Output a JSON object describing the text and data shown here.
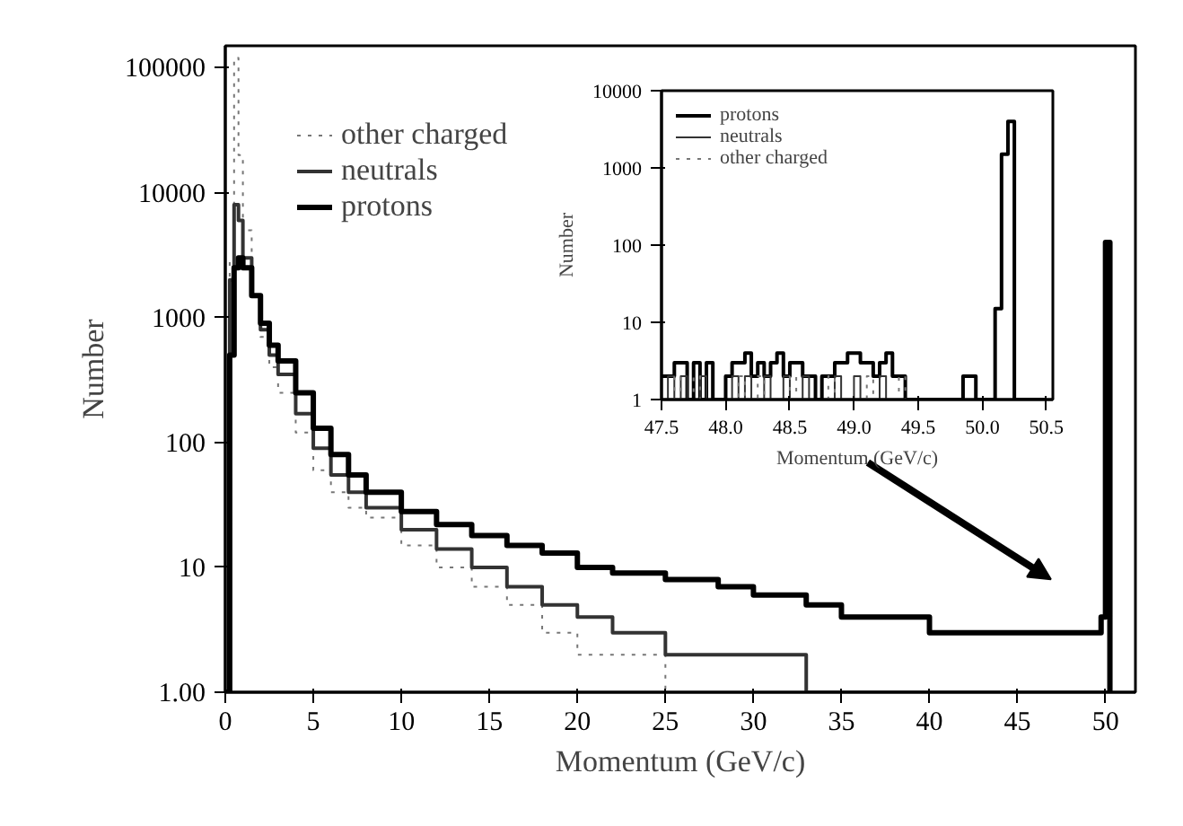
{
  "chart_data": [
    {
      "type": "step",
      "xlabel": "Momentum (GeV/c)",
      "ylabel": "Number",
      "log": "y",
      "legend": "top left",
      "x": [
        0,
        0.25,
        0.5,
        0.75,
        1,
        1.5,
        2,
        2.5,
        3,
        4,
        5,
        6,
        7,
        8,
        10,
        12,
        14,
        16,
        18,
        20,
        22,
        25,
        28,
        30,
        33,
        35,
        38,
        40,
        43,
        45,
        48,
        49.75,
        50,
        50.25
      ],
      "series": [
        {
          "name": "other charged",
          "color": "#777777",
          "line_style": "dotted",
          "values": [
            1,
            3000,
            120000,
            20000,
            5000,
            1500,
            700,
            400,
            250,
            120,
            60,
            40,
            30,
            25,
            15,
            10,
            7,
            5,
            3,
            2,
            2,
            1,
            1,
            1,
            1,
            1,
            1,
            1,
            1,
            1,
            1,
            1,
            1,
            1
          ]
        },
        {
          "name": "neutrals",
          "color": "#333333",
          "line_style": "solid",
          "values": [
            1,
            2000,
            8000,
            6000,
            3000,
            1500,
            800,
            500,
            350,
            170,
            90,
            55,
            40,
            30,
            20,
            14,
            10,
            7,
            5,
            4,
            3,
            2,
            2,
            2,
            1,
            1,
            1,
            1,
            1,
            1,
            1,
            1,
            1,
            1
          ]
        },
        {
          "name": "protons",
          "color": "#000000",
          "line_style": "solid",
          "values": [
            1,
            500,
            2500,
            3000,
            2500,
            1500,
            900,
            600,
            450,
            250,
            130,
            80,
            55,
            40,
            28,
            22,
            18,
            15,
            13,
            10,
            9,
            8,
            7,
            6,
            5,
            4,
            4,
            3,
            3,
            3,
            3,
            4,
            4000,
            1
          ]
        }
      ],
      "xlim": [
        0,
        51.7
      ],
      "ylim": [
        1,
        150000
      ],
      "xticks": [
        0,
        5,
        10,
        15,
        20,
        25,
        30,
        35,
        40,
        45,
        50
      ],
      "yticks": [
        {
          "value": 1,
          "label": "1.00"
        },
        10,
        100,
        1000,
        10000,
        100000
      ]
    },
    {
      "type": "step",
      "xlabel": "Momentum (GeV/c)",
      "ylabel": "Number",
      "log": "y",
      "legend": "top left",
      "x": [
        47.5,
        47.55,
        47.6,
        47.65,
        47.7,
        47.75,
        47.8,
        47.85,
        47.9,
        47.95,
        48.0,
        48.05,
        48.1,
        48.15,
        48.2,
        48.25,
        48.3,
        48.35,
        48.4,
        48.45,
        48.5,
        48.55,
        48.6,
        48.65,
        48.7,
        48.75,
        48.8,
        48.85,
        48.9,
        48.95,
        49.0,
        49.05,
        49.1,
        49.15,
        49.2,
        49.25,
        49.3,
        49.35,
        49.4,
        49.45,
        49.5,
        49.55,
        49.6,
        49.65,
        49.7,
        49.75,
        49.8,
        49.85,
        49.9,
        49.95,
        50.0,
        50.05,
        50.1,
        50.15,
        50.2,
        50.25,
        50.3,
        50.35,
        50.4,
        50.45,
        50.5
      ],
      "series": [
        {
          "name": "protons",
          "color": "#000000",
          "line_style": "solid",
          "values": [
            2,
            2,
            3,
            3,
            1,
            3,
            1,
            3,
            1,
            1,
            2,
            3,
            3,
            4,
            2,
            3,
            2,
            3,
            4,
            2,
            3,
            3,
            2,
            2,
            1,
            2,
            2,
            3,
            3,
            4,
            4,
            3,
            3,
            2,
            3,
            4,
            2,
            2,
            1,
            1,
            1,
            1,
            1,
            1,
            1,
            1,
            1,
            2,
            2,
            1,
            1,
            1,
            15,
            1500,
            4000,
            1,
            1,
            1,
            1,
            1,
            1
          ]
        },
        {
          "name": "neutrals",
          "color": "#333333",
          "line_style": "solid",
          "values": [
            1,
            2,
            1,
            2,
            1,
            1,
            2,
            1,
            1,
            1,
            1,
            2,
            1,
            2,
            1,
            1,
            2,
            1,
            1,
            2,
            1,
            1,
            2,
            1,
            1,
            1,
            1,
            2,
            1,
            1,
            2,
            1,
            1,
            1,
            2,
            1,
            1,
            1,
            1,
            1,
            1,
            1,
            1,
            1,
            1,
            1,
            1,
            1,
            1,
            1,
            1,
            1,
            1,
            1,
            1,
            1,
            1,
            1,
            1,
            1,
            1
          ]
        },
        {
          "name": "other charged",
          "color": "#777777",
          "line_style": "dotted",
          "values": [
            1,
            1,
            2,
            1,
            1,
            2,
            1,
            1,
            1,
            1,
            1,
            1,
            2,
            1,
            1,
            2,
            1,
            1,
            1,
            1,
            2,
            1,
            1,
            1,
            1,
            1,
            2,
            1,
            1,
            1,
            1,
            1,
            2,
            1,
            1,
            1,
            1,
            2,
            1,
            1,
            1,
            1,
            1,
            1,
            1,
            1,
            1,
            1,
            1,
            1,
            1,
            1,
            1,
            1,
            1,
            1,
            1,
            1,
            1,
            1,
            1
          ]
        }
      ],
      "xlim": [
        47.5,
        50.55
      ],
      "ylim": [
        1,
        10000
      ],
      "xticks": [
        47.5,
        {
          "value": 48,
          "label": "48.0"
        },
        48.5,
        {
          "value": 49,
          "label": "49.0"
        },
        49.5,
        {
          "value": 50,
          "label": "50.0"
        },
        50.5
      ],
      "yticks": [
        1,
        10,
        100,
        1000,
        10000
      ]
    }
  ]
}
